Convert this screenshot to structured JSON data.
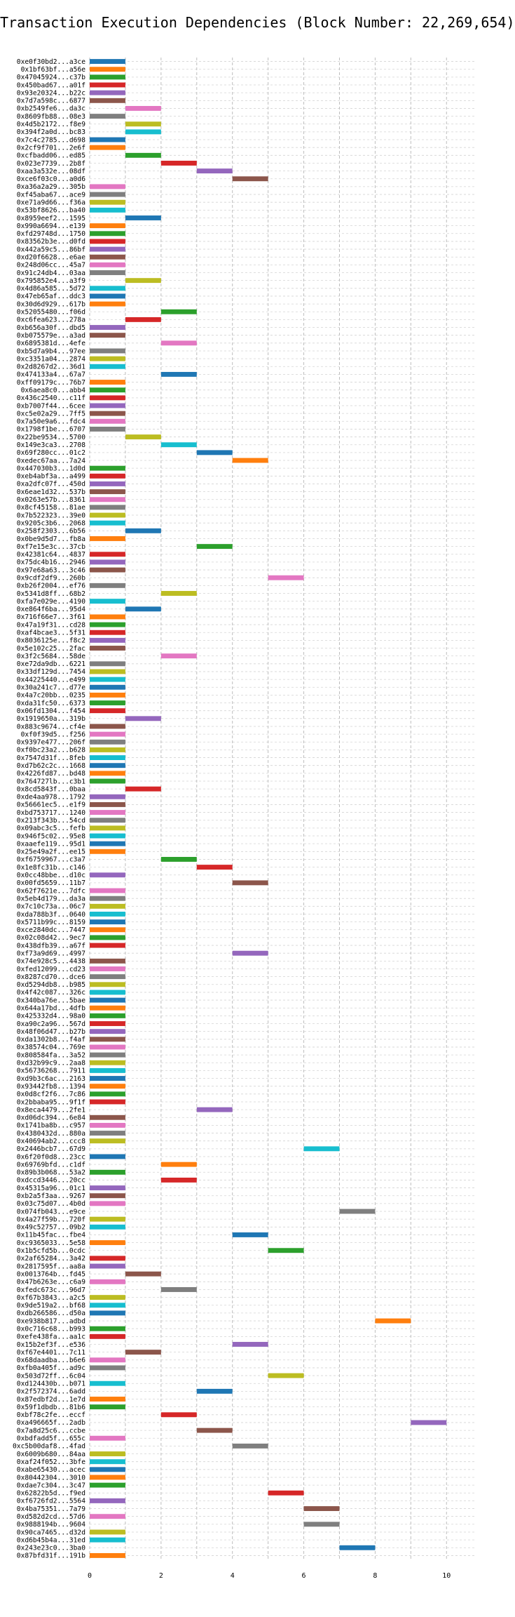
{
  "chart_data": {
    "type": "bar",
    "orientation": "horizontal",
    "title": "Transaction Execution Dependencies (Block Number: 22,269,654)",
    "xlabel": "",
    "ylabel": "",
    "xlim": [
      0,
      10.8
    ],
    "xticks": [
      0,
      2,
      4,
      6,
      8,
      10
    ],
    "grid": true,
    "palette": [
      "#1f77b4",
      "#ff7f0e",
      "#2ca02c",
      "#d62728",
      "#9467bd",
      "#8c564b",
      "#e377c2",
      "#7f7f7f",
      "#bcbd22",
      "#17becf"
    ],
    "transactions": [
      {
        "label": "0xe0f30bd2...a3ce",
        "start": 0,
        "end": 1
      },
      {
        "label": "0x1bf63bf...a56e",
        "start": 0,
        "end": 1
      },
      {
        "label": "0x47045924...c37b",
        "start": 0,
        "end": 1
      },
      {
        "label": "0x450bad67...a01f",
        "start": 0,
        "end": 1
      },
      {
        "label": "0x93e20324...b22c",
        "start": 0,
        "end": 1
      },
      {
        "label": "0x7d7a598c...6877",
        "start": 0,
        "end": 1
      },
      {
        "label": "0xb2549fe6...da3c",
        "start": 1,
        "end": 2
      },
      {
        "label": "0x8609fb88...08e3",
        "start": 0,
        "end": 1
      },
      {
        "label": "0x4d5b2172...f8e9",
        "start": 1,
        "end": 2
      },
      {
        "label": "0x394f2a0d...bc83",
        "start": 1,
        "end": 2
      },
      {
        "label": "0x7c4c2785...d698",
        "start": 0,
        "end": 1
      },
      {
        "label": "0x2cf9f701...2e6f",
        "start": 0,
        "end": 1
      },
      {
        "label": "0xcfbadd06...ed85",
        "start": 1,
        "end": 2
      },
      {
        "label": "0x023e7739...2b8f",
        "start": 2,
        "end": 3
      },
      {
        "label": "0xaa3a532e...08df",
        "start": 3,
        "end": 4
      },
      {
        "label": "0xce6f03c0...a0d6",
        "start": 4,
        "end": 5
      },
      {
        "label": "0xa36a2a29...305b",
        "start": 0,
        "end": 1
      },
      {
        "label": "0xf45aba67...ace9",
        "start": 0,
        "end": 1
      },
      {
        "label": "0xe71a9d66...f36a",
        "start": 0,
        "end": 1
      },
      {
        "label": "0x53bf8626...ba40",
        "start": 0,
        "end": 1
      },
      {
        "label": "0x8959eef2...1595",
        "start": 1,
        "end": 2
      },
      {
        "label": "0x990a6694...e139",
        "start": 0,
        "end": 1
      },
      {
        "label": "0xfd29748d...1750",
        "start": 0,
        "end": 1
      },
      {
        "label": "0x83562b3e...d0fd",
        "start": 0,
        "end": 1
      },
      {
        "label": "0x442a59c5...86bf",
        "start": 0,
        "end": 1
      },
      {
        "label": "0xd20f6628...e6ae",
        "start": 0,
        "end": 1
      },
      {
        "label": "0x248d06cc...45a7",
        "start": 0,
        "end": 1
      },
      {
        "label": "0x91c24db4...03aa",
        "start": 0,
        "end": 1
      },
      {
        "label": "0x795852e4...a3f9",
        "start": 1,
        "end": 2
      },
      {
        "label": "0x4d86a585...5d72",
        "start": 0,
        "end": 1
      },
      {
        "label": "0x47eb65af...ddc3",
        "start": 0,
        "end": 1
      },
      {
        "label": "0x30d6d929...617b",
        "start": 0,
        "end": 1
      },
      {
        "label": "0x52055480...f06d",
        "start": 2,
        "end": 3
      },
      {
        "label": "0xc6fea623...278a",
        "start": 1,
        "end": 2
      },
      {
        "label": "0xb656a30f...dbd5",
        "start": 0,
        "end": 1
      },
      {
        "label": "0xb075579e...a3ad",
        "start": 0,
        "end": 1
      },
      {
        "label": "0x6895381d...4efe",
        "start": 2,
        "end": 3
      },
      {
        "label": "0xb5d7a9b4...97ee",
        "start": 0,
        "end": 1
      },
      {
        "label": "0xc3351a04...2874",
        "start": 0,
        "end": 1
      },
      {
        "label": "0x2d8267d2...36d1",
        "start": 0,
        "end": 1
      },
      {
        "label": "0x474133a4...67a7",
        "start": 2,
        "end": 3
      },
      {
        "label": "0xff09179c...76b7",
        "start": 0,
        "end": 1
      },
      {
        "label": "0x6aea8c0...abb4",
        "start": 0,
        "end": 1
      },
      {
        "label": "0x436c2540...c11f",
        "start": 0,
        "end": 1
      },
      {
        "label": "0xb7007f44...6cee",
        "start": 0,
        "end": 1
      },
      {
        "label": "0xc5e02a29...7ff5",
        "start": 0,
        "end": 1
      },
      {
        "label": "0x7a50e9a6...fdc4",
        "start": 0,
        "end": 1
      },
      {
        "label": "0x1798f1be...6707",
        "start": 0,
        "end": 1
      },
      {
        "label": "0x22be9534...5700",
        "start": 1,
        "end": 2
      },
      {
        "label": "0x149e3ca3...2708",
        "start": 2,
        "end": 3
      },
      {
        "label": "0x69f280cc...01c2",
        "start": 3,
        "end": 4
      },
      {
        "label": "0xedec67aa...7a24",
        "start": 4,
        "end": 5
      },
      {
        "label": "0x447030b3...1d0d",
        "start": 0,
        "end": 1
      },
      {
        "label": "0xeb4abf3a...a499",
        "start": 0,
        "end": 1
      },
      {
        "label": "0xa2dfc07f...450d",
        "start": 0,
        "end": 1
      },
      {
        "label": "0x6eae1d32...537b",
        "start": 0,
        "end": 1
      },
      {
        "label": "0x0263e57b...8361",
        "start": 0,
        "end": 1
      },
      {
        "label": "0x8cf45158...81ae",
        "start": 0,
        "end": 1
      },
      {
        "label": "0x7b522323...39e0",
        "start": 0,
        "end": 1
      },
      {
        "label": "0x9205c3b6...2068",
        "start": 0,
        "end": 1
      },
      {
        "label": "0x258f2303...6b56",
        "start": 1,
        "end": 2
      },
      {
        "label": "0x0be9d5d7...fb8a",
        "start": 0,
        "end": 1
      },
      {
        "label": "0xf7e15e3c...37cb",
        "start": 3,
        "end": 4
      },
      {
        "label": "0x42381c64...4837",
        "start": 0,
        "end": 1
      },
      {
        "label": "0x75dc4b16...2946",
        "start": 0,
        "end": 1
      },
      {
        "label": "0x97e68a63...3c46",
        "start": 0,
        "end": 1
      },
      {
        "label": "0x9cdf2df9...260b",
        "start": 5,
        "end": 6
      },
      {
        "label": "0xb26f2004...ef76",
        "start": 0,
        "end": 1
      },
      {
        "label": "0x5341d8ff...68b2",
        "start": 2,
        "end": 3
      },
      {
        "label": "0xfa7e029e...4190",
        "start": 0,
        "end": 1
      },
      {
        "label": "0xe864f6ba...95d4",
        "start": 1,
        "end": 2
      },
      {
        "label": "0x716f66e7...3f61",
        "start": 0,
        "end": 1
      },
      {
        "label": "0x47a19f31...cd28",
        "start": 0,
        "end": 1
      },
      {
        "label": "0xaf4bcae3...5f31",
        "start": 0,
        "end": 1
      },
      {
        "label": "0x8036125e...f8c2",
        "start": 0,
        "end": 1
      },
      {
        "label": "0x5e102c25...2fac",
        "start": 0,
        "end": 1
      },
      {
        "label": "0x3f2c5684...58de",
        "start": 2,
        "end": 3
      },
      {
        "label": "0xe72da9db...6221",
        "start": 0,
        "end": 1
      },
      {
        "label": "0x33df129d...7454",
        "start": 0,
        "end": 1
      },
      {
        "label": "0x44225440...e499",
        "start": 0,
        "end": 1
      },
      {
        "label": "0x30a241c7...d77e",
        "start": 0,
        "end": 1
      },
      {
        "label": "0x4a7c20bb...0235",
        "start": 0,
        "end": 1
      },
      {
        "label": "0xda31fc50...6373",
        "start": 0,
        "end": 1
      },
      {
        "label": "0x06fd1304...f454",
        "start": 0,
        "end": 1
      },
      {
        "label": "0x1919650a...319b",
        "start": 1,
        "end": 2
      },
      {
        "label": "0x883c9674...cf4e",
        "start": 0,
        "end": 1
      },
      {
        "label": "0xf0f39d5...f256",
        "start": 0,
        "end": 1
      },
      {
        "label": "0x9397e477...206f",
        "start": 0,
        "end": 1
      },
      {
        "label": "0xf0bc23a2...b628",
        "start": 0,
        "end": 1
      },
      {
        "label": "0x7547d31f...8feb",
        "start": 0,
        "end": 1
      },
      {
        "label": "0xd7b62c2c...1668",
        "start": 0,
        "end": 1
      },
      {
        "label": "0x4226fd87...bd48",
        "start": 0,
        "end": 1
      },
      {
        "label": "0x764727lb...c3b1",
        "start": 0,
        "end": 1
      },
      {
        "label": "0x8cd5843f...0baa",
        "start": 1,
        "end": 2
      },
      {
        "label": "0xde4aa978...1792",
        "start": 0,
        "end": 1
      },
      {
        "label": "0x56661ec5...e1f9",
        "start": 0,
        "end": 1
      },
      {
        "label": "0xbd753717...1240",
        "start": 0,
        "end": 1
      },
      {
        "label": "0x213f343b...54cd",
        "start": 0,
        "end": 1
      },
      {
        "label": "0x09abc3c5...fefb",
        "start": 0,
        "end": 1
      },
      {
        "label": "0x946f5c02...95e8",
        "start": 0,
        "end": 1
      },
      {
        "label": "0xaaefe119...95d1",
        "start": 0,
        "end": 1
      },
      {
        "label": "0x25e49a2f...ee15",
        "start": 0,
        "end": 1
      },
      {
        "label": "0xf6759967...c3a7",
        "start": 2,
        "end": 3
      },
      {
        "label": "0x1e8fc31b...c146",
        "start": 3,
        "end": 4
      },
      {
        "label": "0x0cc48bbe...d10c",
        "start": 0,
        "end": 1
      },
      {
        "label": "0x00fd5659...11b7",
        "start": 4,
        "end": 5
      },
      {
        "label": "0x62f7621e...7dfc",
        "start": 0,
        "end": 1
      },
      {
        "label": "0x5eb4d179...da3a",
        "start": 0,
        "end": 1
      },
      {
        "label": "0x7c10c73a...06c7",
        "start": 0,
        "end": 1
      },
      {
        "label": "0xda788b3f...0640",
        "start": 0,
        "end": 1
      },
      {
        "label": "0x5711b99c...8159",
        "start": 0,
        "end": 1
      },
      {
        "label": "0xce2840dc...7447",
        "start": 0,
        "end": 1
      },
      {
        "label": "0x02c08d42...9ec7",
        "start": 0,
        "end": 1
      },
      {
        "label": "0x438dfb39...a67f",
        "start": 0,
        "end": 1
      },
      {
        "label": "0xf73a9d69...4997",
        "start": 4,
        "end": 5
      },
      {
        "label": "0x74e928c5...4438",
        "start": 0,
        "end": 1
      },
      {
        "label": "0xfed12099...cd23",
        "start": 0,
        "end": 1
      },
      {
        "label": "0x8287cd70...dce6",
        "start": 0,
        "end": 1
      },
      {
        "label": "0xd5294db8...b985",
        "start": 0,
        "end": 1
      },
      {
        "label": "0x4f42c087...326c",
        "start": 0,
        "end": 1
      },
      {
        "label": "0x340ba76e...5bae",
        "start": 0,
        "end": 1
      },
      {
        "label": "0x644a17bd...4dfb",
        "start": 0,
        "end": 1
      },
      {
        "label": "0x425332d4...98a0",
        "start": 0,
        "end": 1
      },
      {
        "label": "0xa90c2a96...567d",
        "start": 0,
        "end": 1
      },
      {
        "label": "0x48f06d47...b27b",
        "start": 0,
        "end": 1
      },
      {
        "label": "0xda1302b8...f4af",
        "start": 0,
        "end": 1
      },
      {
        "label": "0x38574c04...769e",
        "start": 0,
        "end": 1
      },
      {
        "label": "0x808584fa...3a52",
        "start": 0,
        "end": 1
      },
      {
        "label": "0xd32b99c9...2aa8",
        "start": 0,
        "end": 1
      },
      {
        "label": "0x56736268...7911",
        "start": 0,
        "end": 1
      },
      {
        "label": "0xd9b3c6ac...2163",
        "start": 0,
        "end": 1
      },
      {
        "label": "0x93442fb8...1394",
        "start": 0,
        "end": 1
      },
      {
        "label": "0x0d8cf2f6...7c86",
        "start": 0,
        "end": 1
      },
      {
        "label": "0x2bbaba95...9f1f",
        "start": 0,
        "end": 1
      },
      {
        "label": "0x8eca4479...2fe1",
        "start": 3,
        "end": 4
      },
      {
        "label": "0xd06dc394...6e84",
        "start": 0,
        "end": 1
      },
      {
        "label": "0x1741ba8b...c957",
        "start": 0,
        "end": 1
      },
      {
        "label": "0x4380432d...880a",
        "start": 0,
        "end": 1
      },
      {
        "label": "0x40694ab2...ccc8",
        "start": 0,
        "end": 1
      },
      {
        "label": "0x2446bcb7...67d9",
        "start": 6,
        "end": 7
      },
      {
        "label": "0x6f20f0d8...23cc",
        "start": 0,
        "end": 1
      },
      {
        "label": "0x69769bfd...c1df",
        "start": 2,
        "end": 3
      },
      {
        "label": "0x89b3b068...53a2",
        "start": 0,
        "end": 1
      },
      {
        "label": "0xdccd3446...20cc",
        "start": 2,
        "end": 3
      },
      {
        "label": "0x45315a96...01c1",
        "start": 0,
        "end": 1
      },
      {
        "label": "0xb2a5f3aa...9267",
        "start": 0,
        "end": 1
      },
      {
        "label": "0x03c75d07...4b0d",
        "start": 0,
        "end": 1
      },
      {
        "label": "0x074fb043...e9ce",
        "start": 7,
        "end": 8
      },
      {
        "label": "0x4a27f59b...720f",
        "start": 0,
        "end": 1
      },
      {
        "label": "0x49c52757...09b2",
        "start": 0,
        "end": 1
      },
      {
        "label": "0x11b45fac...fbe4",
        "start": 4,
        "end": 5
      },
      {
        "label": "0xc9365033...5e58",
        "start": 0,
        "end": 1
      },
      {
        "label": "0x1b5cfd5b...0cdc",
        "start": 5,
        "end": 6
      },
      {
        "label": "0x2af65284...3a42",
        "start": 0,
        "end": 1
      },
      {
        "label": "0x2817595f...aa8a",
        "start": 0,
        "end": 1
      },
      {
        "label": "0x0013764b...fd45",
        "start": 1,
        "end": 2
      },
      {
        "label": "0x47b6263e...c6a9",
        "start": 0,
        "end": 1
      },
      {
        "label": "0xfedc673c...96d7",
        "start": 2,
        "end": 3
      },
      {
        "label": "0xf67b3843...a2c5",
        "start": 0,
        "end": 1
      },
      {
        "label": "0x9de519a2...bf68",
        "start": 0,
        "end": 1
      },
      {
        "label": "0xdb266586...d50a",
        "start": 0,
        "end": 1
      },
      {
        "label": "0xe938b817...adbd",
        "start": 8,
        "end": 9
      },
      {
        "label": "0x0c716c68...b993",
        "start": 0,
        "end": 1
      },
      {
        "label": "0xefe438fa...aa1c",
        "start": 0,
        "end": 1
      },
      {
        "label": "0x15b2ef3f...e536",
        "start": 4,
        "end": 5
      },
      {
        "label": "0xf67e4401...7c11",
        "start": 1,
        "end": 2
      },
      {
        "label": "0x68daadba...b6e6",
        "start": 0,
        "end": 1
      },
      {
        "label": "0xfb0a405f...ad9c",
        "start": 0,
        "end": 1
      },
      {
        "label": "0x503d72ff...6c04",
        "start": 5,
        "end": 6
      },
      {
        "label": "0xd124430b...b071",
        "start": 0,
        "end": 1
      },
      {
        "label": "0x2f572374...6add",
        "start": 3,
        "end": 4
      },
      {
        "label": "0x87edbf2d...1e7d",
        "start": 0,
        "end": 1
      },
      {
        "label": "0x59f1dbdb...81b6",
        "start": 0,
        "end": 1
      },
      {
        "label": "0xbf78c2fe...eccf",
        "start": 2,
        "end": 3
      },
      {
        "label": "0xa496665f...2adb",
        "start": 9,
        "end": 10
      },
      {
        "label": "0x7a8d25c6...ccbe",
        "start": 3,
        "end": 4
      },
      {
        "label": "0xbdfadd5f...655c",
        "start": 0,
        "end": 1
      },
      {
        "label": "0xc5b00daf8...4fad",
        "start": 4,
        "end": 5
      },
      {
        "label": "0x6009b680...84aa",
        "start": 0,
        "end": 1
      },
      {
        "label": "0xaf24f052...3bfe",
        "start": 0,
        "end": 1
      },
      {
        "label": "0xabe65430...acec",
        "start": 0,
        "end": 1
      },
      {
        "label": "0x80442304...3010",
        "start": 0,
        "end": 1
      },
      {
        "label": "0xdae7c304...3c47",
        "start": 0,
        "end": 1
      },
      {
        "label": "0x62822b5d...f9ed",
        "start": 5,
        "end": 6
      },
      {
        "label": "0xf6726fd2...5564",
        "start": 0,
        "end": 1
      },
      {
        "label": "0x4ba75351...7a79",
        "start": 6,
        "end": 7
      },
      {
        "label": "0xd582d2cd...57d6",
        "start": 0,
        "end": 1
      },
      {
        "label": "0x9888194b...9604",
        "start": 6,
        "end": 7
      },
      {
        "label": "0x90ca7465...d32d",
        "start": 0,
        "end": 1
      },
      {
        "label": "0xd6b45b4a...31ed",
        "start": 0,
        "end": 1
      },
      {
        "label": "0x243e23c0...3ba0",
        "start": 7,
        "end": 8
      },
      {
        "label": "0x87bfd31f...191b",
        "start": 0,
        "end": 1
      }
    ]
  }
}
